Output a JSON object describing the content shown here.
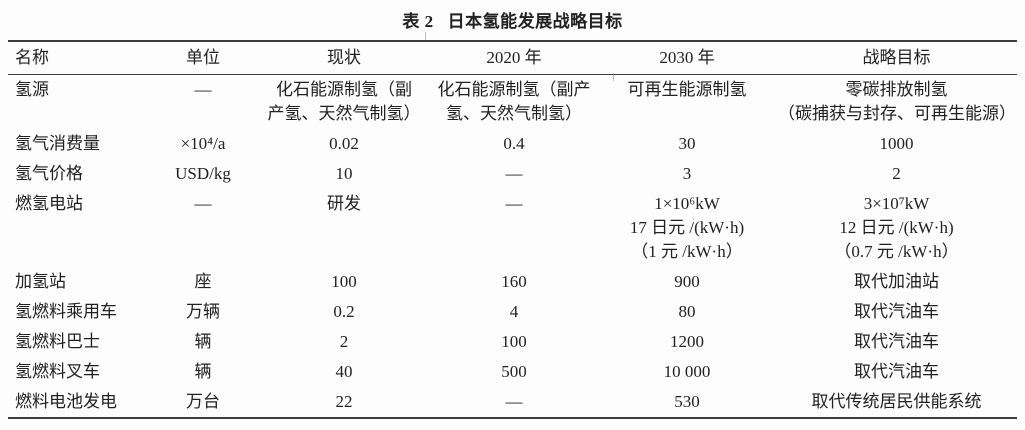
{
  "page": {
    "background": "#fdfdfd",
    "text_color": "#212121",
    "rule_color": "#3c3c3c"
  },
  "table": {
    "title_label": "表 2",
    "title_text": "日本氢能发展战略目标",
    "columns": [
      "名称",
      "单位",
      "现状",
      "2020 年",
      "2030 年",
      "战略目标"
    ],
    "rows": [
      {
        "cells": [
          "氢源",
          "—",
          "化石能源制氢（副\n产氢、天然气制氢）",
          "化石能源制氢（副产\n氢、天然气制氢）",
          "可再生能源制氢",
          "零碳排放制氢\n（碳捕获与封存、可再生能源）"
        ]
      },
      {
        "cells": [
          "氢气消费量",
          "×10⁴/a",
          "0.02",
          "0.4",
          "30",
          "1000"
        ]
      },
      {
        "cells": [
          "氢气价格",
          "USD/kg",
          "10",
          "—",
          "3",
          "2"
        ]
      },
      {
        "cells": [
          "燃氢电站",
          "—",
          "研发",
          "—",
          "1×10⁶kW\n17 日元 /(kW·h)\n（1 元 /kW·h）",
          "3×10⁷kW\n12 日元 /(kW·h)\n（0.7 元 /kW·h）"
        ]
      },
      {
        "cells": [
          "加氢站",
          "座",
          "100",
          "160",
          "900",
          "取代加油站"
        ]
      },
      {
        "cells": [
          "氢燃料乘用车",
          "万辆",
          "0.2",
          "4",
          "80",
          "取代汽油车"
        ]
      },
      {
        "cells": [
          "氢燃料巴士",
          "辆",
          "2",
          "100",
          "1200",
          "取代汽油车"
        ]
      },
      {
        "cells": [
          "氢燃料叉车",
          "辆",
          "40",
          "500",
          "10 000",
          "取代汽油车"
        ]
      },
      {
        "cells": [
          "燃料电池发电",
          "万台",
          "22",
          "—",
          "530",
          "取代传统居民供能系统"
        ]
      }
    ]
  }
}
